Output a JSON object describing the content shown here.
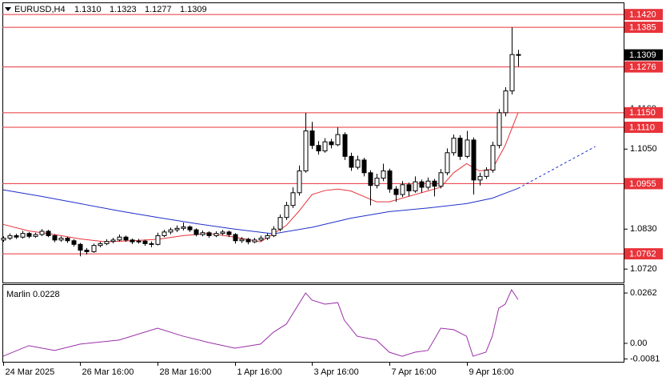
{
  "chart_data": [
    {
      "type": "candlestick",
      "title": "EURUSD,H4",
      "header_values": [
        "1.1310",
        "1.1323",
        "1.1277",
        "1.1309"
      ],
      "x": [
        0,
        1,
        2,
        3,
        4,
        5,
        6,
        7,
        8,
        9,
        10,
        11,
        12,
        13,
        14,
        15,
        16,
        17,
        18,
        19,
        20,
        21,
        22,
        23,
        24,
        25,
        26,
        27,
        28,
        29,
        30,
        31,
        32,
        33,
        34,
        35,
        36,
        37,
        38,
        39,
        40,
        41,
        42,
        43,
        44,
        45,
        46,
        47,
        48,
        49,
        50,
        51,
        52,
        53,
        54,
        55,
        56,
        57,
        58,
        59,
        60,
        61,
        62,
        63,
        64,
        65,
        66,
        67,
        68,
        69,
        70,
        71,
        72,
        73,
        74,
        75,
        76,
        77,
        78,
        79,
        80
      ],
      "open": [
        1.08,
        1.0805,
        1.0812,
        1.0808,
        1.0818,
        1.081,
        1.0815,
        1.0824,
        1.0812,
        1.08,
        1.0805,
        1.0798,
        1.0788,
        1.0772,
        1.0768,
        1.0785,
        1.079,
        1.0796,
        1.08,
        1.0808,
        1.08,
        1.0795,
        1.0797,
        1.079,
        1.0788,
        1.0812,
        1.0822,
        1.0828,
        1.0832,
        1.0836,
        1.0828,
        1.0815,
        1.082,
        1.0812,
        1.0818,
        1.0822,
        1.0815,
        1.0798,
        1.0802,
        1.0795,
        1.08,
        1.0805,
        1.0812,
        1.083,
        1.0862,
        1.0895,
        1.093,
        1.099,
        1.11,
        1.106,
        1.1045,
        1.107,
        1.1062,
        1.109,
        1.103,
        1.1,
        1.102,
        1.0985,
        1.095,
        1.097,
        1.099,
        1.094,
        1.0925,
        1.0952,
        1.0935,
        1.096,
        1.0945,
        1.0962,
        1.0948,
        1.0985,
        1.104,
        1.108,
        1.103,
        1.1075,
        1.0965,
        1.0975,
        1.0992,
        1.106,
        1.115,
        1.121,
        1.131
      ],
      "high": [
        1.081,
        1.0818,
        1.0817,
        1.0825,
        1.0822,
        1.082,
        1.083,
        1.0828,
        1.0816,
        1.081,
        1.0809,
        1.0802,
        1.0792,
        1.0778,
        1.079,
        1.0795,
        1.0802,
        1.0806,
        1.0815,
        1.0812,
        1.0804,
        1.0803,
        1.0801,
        1.0796,
        1.082,
        1.0828,
        1.0834,
        1.084,
        1.0848,
        1.084,
        1.0832,
        1.0826,
        1.0824,
        1.0824,
        1.0828,
        1.0826,
        1.0819,
        1.0808,
        1.0806,
        1.0806,
        1.0812,
        1.0818,
        1.0838,
        1.087,
        1.0905,
        1.0945,
        1.1005,
        1.115,
        1.1125,
        1.1072,
        1.108,
        1.1078,
        1.111,
        1.1096,
        1.104,
        1.1032,
        1.1026,
        1.0992,
        1.0982,
        1.101,
        1.0996,
        1.0948,
        1.0962,
        1.0958,
        1.0975,
        1.0966,
        1.0972,
        1.0968,
        1.0995,
        1.1052,
        1.109,
        1.1088,
        1.11,
        1.1082,
        1.0985,
        1.1,
        1.107,
        1.116,
        1.122,
        1.1385,
        1.1323
      ],
      "low": [
        1.0795,
        1.08,
        1.0803,
        1.0804,
        1.0805,
        1.0806,
        1.0811,
        1.0808,
        1.0794,
        1.0795,
        1.0792,
        1.0782,
        1.0755,
        1.076,
        1.0765,
        1.078,
        1.0786,
        1.0791,
        1.0796,
        1.0795,
        1.0789,
        1.079,
        1.0784,
        1.078,
        1.0785,
        1.0808,
        1.0816,
        1.0822,
        1.0826,
        1.0822,
        1.081,
        1.081,
        1.0806,
        1.0808,
        1.0813,
        1.0808,
        1.079,
        1.0792,
        1.0788,
        1.0791,
        1.0796,
        1.08,
        1.0808,
        1.0824,
        1.0855,
        1.0888,
        1.0922,
        1.0985,
        1.105,
        1.1035,
        1.104,
        1.1052,
        1.1058,
        1.102,
        1.099,
        1.0994,
        1.0975,
        1.0895,
        1.0942,
        1.0962,
        1.093,
        1.0905,
        1.0918,
        1.092,
        1.093,
        1.093,
        1.0938,
        1.092,
        1.0942,
        1.0978,
        1.1032,
        1.102,
        1.1025,
        1.0925,
        1.095,
        1.0968,
        1.0985,
        1.1052,
        1.114,
        1.12,
        1.1277
      ],
      "close": [
        1.0805,
        1.0812,
        1.0808,
        1.0818,
        1.081,
        1.0815,
        1.0824,
        1.0812,
        1.08,
        1.0805,
        1.0798,
        1.0788,
        1.0772,
        1.0768,
        1.0785,
        1.079,
        1.0796,
        1.08,
        1.0808,
        1.08,
        1.0795,
        1.0797,
        1.079,
        1.0788,
        1.0812,
        1.0822,
        1.0828,
        1.0832,
        1.0836,
        1.0828,
        1.0815,
        1.082,
        1.0812,
        1.0818,
        1.0822,
        1.0815,
        1.0798,
        1.0802,
        1.0795,
        1.08,
        1.0805,
        1.0812,
        1.083,
        1.0862,
        1.0895,
        1.093,
        1.099,
        1.11,
        1.106,
        1.1045,
        1.107,
        1.1062,
        1.109,
        1.103,
        1.1,
        1.102,
        1.0985,
        1.095,
        1.097,
        1.099,
        1.094,
        1.0925,
        1.0952,
        1.0935,
        1.096,
        1.0945,
        1.0962,
        1.0948,
        1.0985,
        1.104,
        1.108,
        1.103,
        1.1075,
        1.0965,
        1.0975,
        1.0992,
        1.106,
        1.115,
        1.121,
        1.131,
        1.1309
      ],
      "bull_color": "#ffffff",
      "bear_color": "#000000",
      "overlays": [
        {
          "color": "#e8333a",
          "style": "solid",
          "x": [
            0,
            4,
            8,
            12,
            16,
            20,
            24,
            28,
            32,
            36,
            40,
            44,
            46,
            48,
            50,
            52,
            54,
            56,
            58,
            60,
            62,
            64,
            66,
            68,
            70,
            72,
            74,
            76,
            78,
            80
          ],
          "values": [
            1.0843,
            1.0825,
            1.0815,
            1.0803,
            1.0795,
            1.0798,
            1.0802,
            1.0812,
            1.0818,
            1.0808,
            1.0795,
            1.084,
            1.088,
            1.0925,
            1.0936,
            1.094,
            1.0935,
            1.092,
            1.0905,
            1.0905,
            1.0915,
            1.0925,
            1.0935,
            1.0945,
            1.0985,
            1.101,
            1.099,
            1.0995,
            1.106,
            1.115
          ]
        },
        {
          "color": "#1f2fc8",
          "style": "solid",
          "x": [
            0,
            6,
            12,
            18,
            24,
            30,
            36,
            42,
            48,
            54,
            60,
            66,
            72,
            76,
            80
          ],
          "values": [
            1.0938,
            1.092,
            1.09,
            1.088,
            1.0862,
            1.0845,
            1.083,
            1.0817,
            1.0835,
            1.086,
            1.0878,
            1.0888,
            1.09,
            1.0915,
            1.0942
          ]
        },
        {
          "color": "#1f2fc8",
          "style": "dotted",
          "x": [
            80,
            92
          ],
          "values": [
            1.0942,
            1.1057
          ]
        }
      ],
      "levels": [
        {
          "value": 1.142,
          "label": "1.1420"
        },
        {
          "value": 1.1385,
          "label": "1.1385"
        },
        {
          "value": 1.1276,
          "label": "1.1276"
        },
        {
          "value": 1.115,
          "label": "1.1150"
        },
        {
          "value": 1.111,
          "label": "1.1110"
        },
        {
          "value": 1.0955,
          "label": "1.0955"
        },
        {
          "value": 1.0762,
          "label": "1.0762"
        }
      ],
      "level_color": "#e8333a",
      "last_price": {
        "value": 1.1309,
        "label": "1.1309"
      },
      "xlim": [
        -0.1,
        96.4
      ],
      "ylim": [
        1.0683,
        1.1449
      ],
      "yticks": [
        {
          "value": 1.116,
          "label": "1.1160"
        },
        {
          "value": 1.105,
          "label": "1.1050"
        },
        {
          "value": 1.083,
          "label": "1.0830"
        },
        {
          "value": 1.072,
          "label": "1.0720"
        }
      ]
    },
    {
      "type": "line",
      "title": "Marlin 0.0228",
      "color": "#9a2fa8",
      "x": [
        0,
        4,
        8,
        12,
        18,
        24,
        28,
        32,
        36,
        40,
        42,
        44,
        47,
        48,
        50,
        52,
        53,
        55,
        58,
        60,
        62,
        64,
        66,
        68,
        70,
        72,
        73,
        75,
        76,
        77,
        78,
        79,
        80
      ],
      "values": [
        -0.0067,
        -0.0012,
        -0.0037,
        -0.0004,
        0.0017,
        0.0079,
        0.0037,
        0.0004,
        -0.0025,
        -0.0004,
        0.0058,
        0.01,
        0.0262,
        0.0225,
        0.0204,
        0.0212,
        0.0121,
        0.0037,
        0.0017,
        -0.0046,
        -0.0067,
        -0.0046,
        -0.0037,
        0.0079,
        0.0071,
        0.0037,
        -0.0067,
        -0.0046,
        0.0037,
        0.0183,
        0.0204,
        0.0279,
        0.0228
      ],
      "xlim": [
        -0.1,
        96.4
      ],
      "ylim": [
        -0.0096,
        0.0304
      ],
      "yticks": [
        {
          "value": 0.0262,
          "label": "0.0262"
        },
        {
          "value": 0,
          "label": "0.00"
        },
        {
          "value": -0.0081,
          "label": "-0.0081"
        }
      ],
      "xticks": [
        {
          "value": 0,
          "label": "24 Mar 2025"
        },
        {
          "value": 12,
          "label": "26 Mar 16:00"
        },
        {
          "value": 24,
          "label": "28 Mar 16:00"
        },
        {
          "value": 36,
          "label": "1 Apr 16:00"
        },
        {
          "value": 48,
          "label": "3 Apr 16:00"
        },
        {
          "value": 60,
          "label": "7 Apr 16:00"
        },
        {
          "value": 72,
          "label": "9 Apr 16:00"
        }
      ]
    }
  ]
}
